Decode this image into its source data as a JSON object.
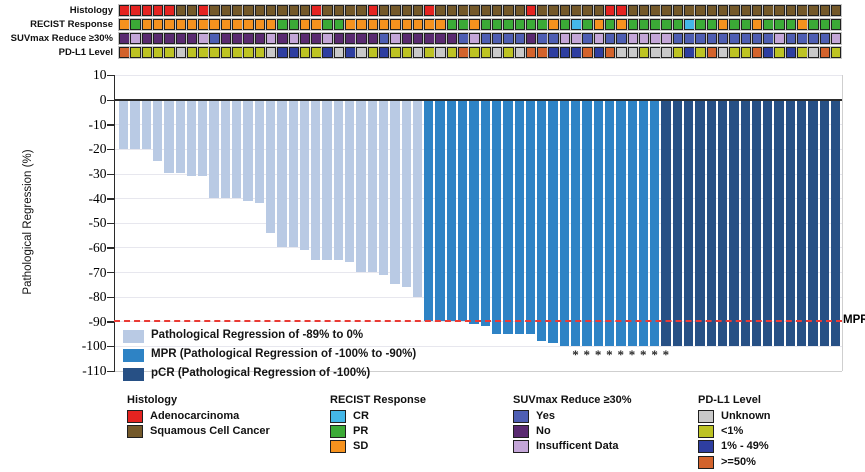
{
  "tracks": {
    "palette": {
      "A": "#e42320",
      "S": "#74592a",
      "O": "#f6921e",
      "G": "#3baa36",
      "C": "#44b7e8",
      "Y": "#4e5eb3",
      "N": "#5a2a71",
      "I": "#c4a6d8",
      "U": "#c9c9c9",
      "L": "#bdc323",
      "M": "#2e3ea0",
      "H": "#d3632c"
    },
    "rows": [
      {
        "label": "Histology",
        "values": [
          "A",
          "A",
          "A",
          "A",
          "A",
          "S",
          "S",
          "A",
          "S",
          "S",
          "S",
          "S",
          "S",
          "S",
          "S",
          "S",
          "S",
          "A",
          "S",
          "S",
          "S",
          "S",
          "A",
          "S",
          "S",
          "S",
          "S",
          "A",
          "S",
          "S",
          "S",
          "S",
          "S",
          "S",
          "S",
          "S",
          "A",
          "S",
          "S",
          "S",
          "S",
          "S",
          "S",
          "A",
          "A",
          "S",
          "S",
          "S",
          "S",
          "S",
          "S",
          "S",
          "S",
          "S",
          "S",
          "S",
          "S",
          "S",
          "S",
          "S",
          "S",
          "S",
          "S",
          "S"
        ]
      },
      {
        "label": "RECIST Response",
        "values": [
          "O",
          "G",
          "O",
          "O",
          "O",
          "O",
          "O",
          "O",
          "O",
          "O",
          "O",
          "O",
          "O",
          "O",
          "G",
          "G",
          "O",
          "O",
          "G",
          "G",
          "O",
          "O",
          "O",
          "O",
          "O",
          "O",
          "O",
          "O",
          "O",
          "G",
          "G",
          "O",
          "G",
          "G",
          "G",
          "G",
          "G",
          "G",
          "O",
          "G",
          "C",
          "G",
          "O",
          "G",
          "O",
          "G",
          "G",
          "G",
          "G",
          "G",
          "C",
          "G",
          "G",
          "O",
          "G",
          "G",
          "O",
          "G",
          "G",
          "G",
          "O",
          "G",
          "G",
          "G"
        ]
      },
      {
        "label": "SUVmax Reduce ≥30%",
        "values": [
          "N",
          "I",
          "N",
          "N",
          "N",
          "N",
          "N",
          "I",
          "Y",
          "N",
          "N",
          "N",
          "N",
          "I",
          "N",
          "I",
          "N",
          "N",
          "I",
          "N",
          "N",
          "N",
          "N",
          "Y",
          "I",
          "N",
          "N",
          "N",
          "N",
          "N",
          "Y",
          "I",
          "Y",
          "Y",
          "Y",
          "Y",
          "N",
          "Y",
          "Y",
          "I",
          "I",
          "Y",
          "I",
          "Y",
          "Y",
          "I",
          "I",
          "I",
          "I",
          "Y",
          "Y",
          "Y",
          "Y",
          "Y",
          "Y",
          "Y",
          "Y",
          "Y",
          "I",
          "Y",
          "Y",
          "Y",
          "Y",
          "I"
        ]
      },
      {
        "label": "PD-L1 Level",
        "values": [
          "H",
          "L",
          "L",
          "L",
          "L",
          "U",
          "L",
          "L",
          "L",
          "L",
          "L",
          "L",
          "L",
          "U",
          "M",
          "M",
          "L",
          "L",
          "M",
          "U",
          "M",
          "U",
          "L",
          "M",
          "L",
          "L",
          "U",
          "L",
          "U",
          "L",
          "H",
          "L",
          "L",
          "U",
          "L",
          "U",
          "H",
          "H",
          "M",
          "M",
          "M",
          "H",
          "M",
          "H",
          "U",
          "U",
          "L",
          "U",
          "U",
          "L",
          "M",
          "L",
          "H",
          "U",
          "L",
          "L",
          "H",
          "M",
          "L",
          "M",
          "L",
          "U",
          "H",
          "L"
        ]
      }
    ]
  },
  "chart_data": {
    "type": "bar",
    "title": "",
    "xlabel": "",
    "ylabel": "Pathological Regression (%)",
    "ylim": [
      -110,
      10
    ],
    "yticks": [
      10,
      0,
      -10,
      -20,
      -30,
      -40,
      -50,
      -60,
      -70,
      -80,
      -90,
      -100,
      -110
    ],
    "grid": true,
    "values": [
      -20,
      -20,
      -20,
      -25,
      -30,
      -30,
      -31,
      -31,
      -40,
      -40,
      -40,
      -41,
      -42,
      -54,
      -60,
      -60,
      -61,
      -65,
      -65,
      -65,
      -66,
      -70,
      -70,
      -71,
      -75,
      -76,
      -80,
      -90,
      -90,
      -90,
      -90,
      -91,
      -92,
      -95,
      -95,
      -95,
      -95,
      -98,
      -99,
      -100,
      -100,
      -100,
      -100,
      -100,
      -100,
      -100,
      -100,
      -100,
      -100,
      -100,
      -100,
      -100,
      -100,
      -100,
      -100,
      -100,
      -100,
      -100,
      -100,
      -100,
      -100,
      -100,
      -100,
      -100
    ],
    "group_counts": [
      {
        "name": "reg",
        "count": 27
      },
      {
        "name": "mpr",
        "count": 21
      },
      {
        "name": "pcr",
        "count": 16
      }
    ],
    "groups": {
      "reg": {
        "color": "#b9cae4",
        "label": "Pathological Regression of -89% to 0%"
      },
      "mpr": {
        "color": "#2e83c5",
        "label": "MPR (Pathological Regression of -100% to -90%)"
      },
      "pcr": {
        "color": "#275085",
        "label": "pCR (Pathological Regression of -100%)"
      }
    },
    "reference_line": {
      "value": -90,
      "label": "MPR",
      "style": "dashed",
      "color": "#ea3b34"
    },
    "starred_indices": [
      40,
      41,
      42,
      43,
      44,
      45,
      46,
      47,
      48
    ],
    "star_symbol": "*",
    "legend_position": "inside-bottom-left"
  },
  "legends": [
    {
      "title": "Histology",
      "items": [
        {
          "label": "Adenocarcinoma",
          "color": "#e42320"
        },
        {
          "label": "Squamous Cell Cancer",
          "color": "#74592a"
        }
      ]
    },
    {
      "title": "RECIST Response",
      "items": [
        {
          "label": "CR",
          "color": "#44b7e8"
        },
        {
          "label": "PR",
          "color": "#3baa36"
        },
        {
          "label": "SD",
          "color": "#f6921e"
        }
      ]
    },
    {
      "title": "SUVmax Reduce ≥30%",
      "items": [
        {
          "label": "Yes",
          "color": "#4e5eb3"
        },
        {
          "label": "No",
          "color": "#5a2a71"
        },
        {
          "label": "Insufficent Data",
          "color": "#c4a6d8"
        }
      ]
    },
    {
      "title": "PD-L1 Level",
      "items": [
        {
          "label": "Unknown",
          "color": "#c9c9c9"
        },
        {
          "label": "<1%",
          "color": "#bdc323"
        },
        {
          "label": "1% - 49%",
          "color": "#2e3ea0"
        },
        {
          "label": ">=50%",
          "color": "#d3632c"
        }
      ]
    }
  ]
}
